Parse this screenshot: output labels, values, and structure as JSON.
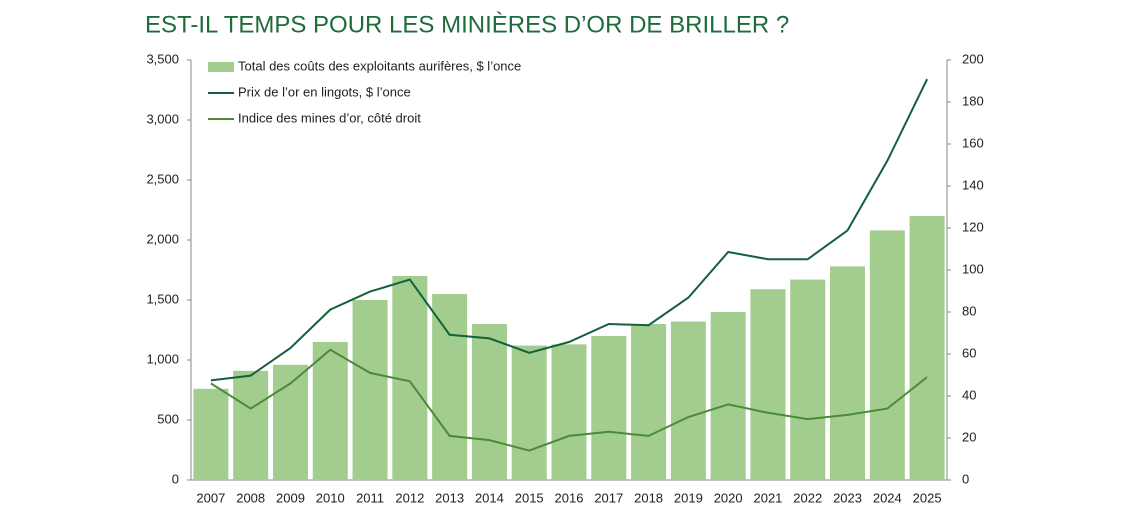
{
  "chart_data": {
    "type": "bar-line",
    "title": "EST-IL TEMPS POUR LES MINIÈRES D’OR DE BRILLER ?",
    "categories": [
      "2007",
      "2008",
      "2009",
      "2010",
      "2011",
      "2012",
      "2013",
      "2014",
      "2015",
      "2016",
      "2017",
      "2018",
      "2019",
      "2020",
      "2021",
      "2022",
      "2023",
      "2024",
      "2025"
    ],
    "series": [
      {
        "name": "Total des coûts des exploitants aurifères, $ l’once",
        "type": "bar",
        "color": "#a3cd8f",
        "values": [
          760,
          910,
          960,
          1150,
          1500,
          1700,
          1550,
          1300,
          1120,
          1130,
          1200,
          1300,
          1320,
          1400,
          1590,
          1670,
          1780,
          2080,
          2200
        ]
      },
      {
        "name": "Prix de l’or en lingots, $ l’once",
        "type": "line",
        "color": "#14613a",
        "values": [
          830,
          870,
          1100,
          1420,
          1570,
          1670,
          1210,
          1180,
          1060,
          1150,
          1300,
          1290,
          1520,
          1900,
          1840,
          1840,
          2080,
          2660,
          3340
        ]
      },
      {
        "name": "Indice des mines d’or, côté droit",
        "type": "line",
        "axis": "y2",
        "color": "#4c8a3a",
        "values": [
          46,
          34,
          46,
          62,
          51,
          47,
          21,
          19,
          14,
          21,
          23,
          21,
          30,
          36,
          32,
          29,
          31,
          34,
          49
        ]
      }
    ],
    "ylim": [
      0,
      3500
    ],
    "yticks": [
      0,
      500,
      {
        "value": 1000,
        "label": "1,000"
      },
      {
        "value": 1500,
        "label": "1,500"
      },
      {
        "value": 2000,
        "label": "2,000"
      },
      {
        "value": 2500,
        "label": "2,500"
      },
      {
        "value": 3000,
        "label": "3,000"
      },
      {
        "value": 3500,
        "label": "3,500"
      }
    ],
    "y2lim": [
      0,
      200
    ],
    "y2ticks": [
      0,
      20,
      40,
      60,
      80,
      100,
      120,
      140,
      160,
      180,
      200
    ],
    "legend": "upper left"
  }
}
